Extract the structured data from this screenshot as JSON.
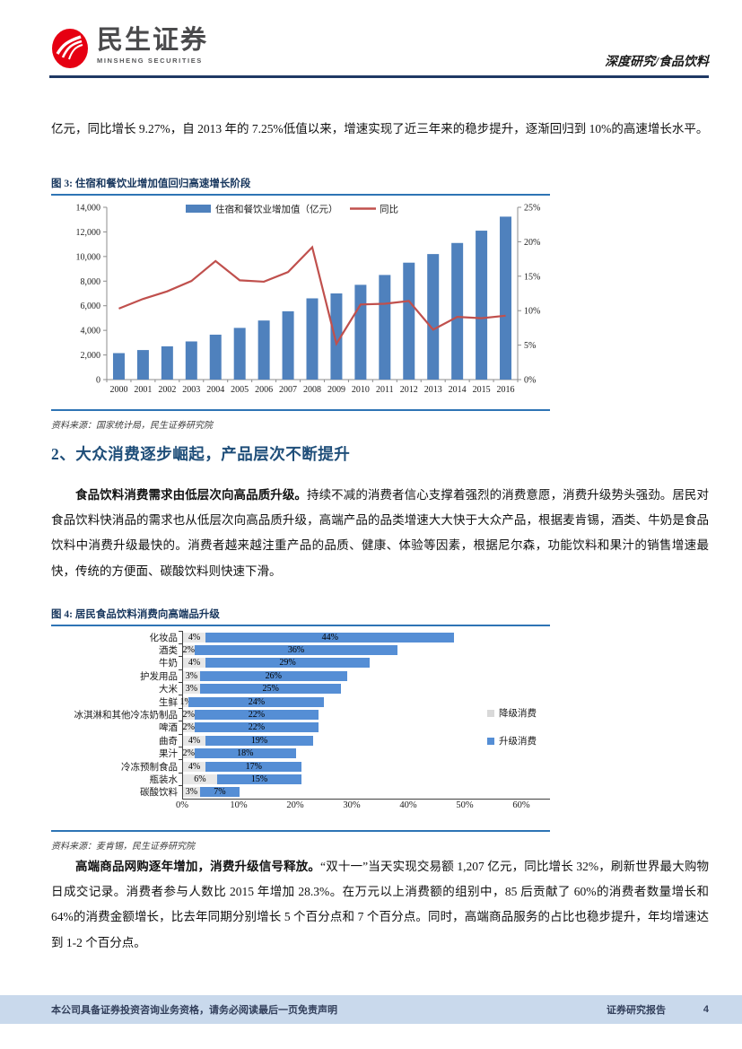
{
  "header": {
    "brand_cn": "民生证券",
    "brand_en": "MINSHENG SECURITIES",
    "doc_type": "深度研究/食品饮料"
  },
  "para1": "亿元，同比增长 9.27%，自 2013 年的 7.25%低值以来，增速实现了近三年来的稳步提升，逐渐回归到 10%的高速增长水平。",
  "figure3": {
    "caption": "图 3: 住宿和餐饮业增加值回归高速增长阶段",
    "source": "资料来源：国家统计局，民生证券研究院"
  },
  "section2": {
    "title": "2、大众消费逐步崛起，产品层次不断提升"
  },
  "para2": {
    "bold": "食品饮料消费需求由低层次向高品质升级。",
    "rest": "持续不减的消费者信心支撑着强烈的消费意愿，消费升级势头强劲。居民对食品饮料快消品的需求也从低层次向高品质升级，高端产品的品类增速大大快于大众产品，根据麦肯锡，酒类、牛奶是食品饮料中消费升级最快的。消费者越来越注重产品的品质、健康、体验等因素，根据尼尔森，功能饮料和果汁的销售增速最快，传统的方便面、碳酸饮料则快速下滑。"
  },
  "figure4": {
    "caption": "图 4: 居民食品饮料消费向高端品升级",
    "source": "资料来源：麦肯锡，民生证券研究院"
  },
  "para3": {
    "bold": "高端商品网购逐年增加，消费升级信号释放。",
    "rest": "“双十一”当天实现交易额 1,207 亿元，同比增长 32%，刷新世界最大购物日成交记录。消费者参与人数比 2015 年增加 28.3%。在万元以上消费额的组别中，85 后贡献了 60%的消费者数量增长和 64%的消费金额增长，比去年同期分别增长 5 个百分点和 7 个百分点。同时，高端商品服务的占比也稳步提升，年均增速达到 1-2 个百分点。"
  },
  "footer": {
    "left": "本公司具备证券投资咨询业务资格，请务必阅读最后一页免责声明",
    "right": "证券研究报告",
    "page": "4"
  },
  "colors": {
    "bar_blue": "#4F81BD",
    "line_red": "#C0504D",
    "upgrade_blue": "#558ED5",
    "downgrade_gray": "#E7E7E7",
    "caption_navy": "#17365D",
    "rule_navy": "#1F3864",
    "underline_blue": "#2E74B5",
    "footer_band": "#C9D9EC",
    "logo_red": "#E60012"
  },
  "chart_data": [
    {
      "type": "bar",
      "subtype": "bar+line-dual-axis",
      "title": "住宿和餐饮业增加值回归高速增长阶段",
      "categories": [
        "2000",
        "2001",
        "2002",
        "2003",
        "2004",
        "2005",
        "2006",
        "2007",
        "2008",
        "2009",
        "2010",
        "2011",
        "2012",
        "2013",
        "2014",
        "2015",
        "2016"
      ],
      "series": [
        {
          "name": "住宿和餐饮业增加值（亿元）",
          "type": "bar",
          "axis": "left",
          "color": "#4F81BD",
          "values": [
            2150,
            2400,
            2700,
            3100,
            3650,
            4200,
            4800,
            5550,
            6600,
            7000,
            7700,
            8500,
            9500,
            10200,
            11100,
            12100,
            13240
          ]
        },
        {
          "name": "同比",
          "type": "line",
          "axis": "right",
          "color": "#C0504D",
          "values": [
            10.3,
            11.7,
            12.8,
            14.3,
            17.2,
            14.4,
            14.2,
            15.6,
            19.2,
            5.2,
            10.9,
            11.0,
            11.4,
            7.25,
            9.1,
            8.9,
            9.27
          ]
        }
      ],
      "left_axis": {
        "min": 0,
        "max": 14000,
        "step": 2000,
        "labels": [
          "0",
          "2,000",
          "4,000",
          "6,000",
          "8,000",
          "10,000",
          "12,000",
          "14,000"
        ]
      },
      "right_axis": {
        "min": 0,
        "max": 25,
        "step": 5,
        "labels": [
          "0%",
          "5%",
          "10%",
          "15%",
          "20%",
          "25%"
        ]
      },
      "grid": false,
      "legend_position": "top"
    },
    {
      "type": "bar",
      "subtype": "horizontal-stacked",
      "title": "居民食品饮料消费向高端品升级",
      "categories": [
        "化妆品",
        "酒类",
        "牛奶",
        "护发用品",
        "大米",
        "生鲜",
        "冰淇淋和其他冷冻奶制品",
        "啤酒",
        "曲奇",
        "果汁",
        "冷冻预制食品",
        "瓶装水",
        "碳酸饮料"
      ],
      "series": [
        {
          "name": "降级消费",
          "color": "#E7E7E7",
          "values": [
            4,
            2,
            4,
            3,
            3,
            1,
            2,
            2,
            4,
            2,
            4,
            6,
            3
          ]
        },
        {
          "name": "升级消费",
          "color": "#558ED5",
          "values": [
            44,
            36,
            29,
            26,
            25,
            24,
            22,
            22,
            19,
            18,
            17,
            15,
            7
          ]
        }
      ],
      "xlim": [
        0,
        60
      ],
      "x_ticks": [
        "0%",
        "10%",
        "20%",
        "30%",
        "40%",
        "50%",
        "60%"
      ],
      "grid": false,
      "legend_position": "right"
    }
  ]
}
